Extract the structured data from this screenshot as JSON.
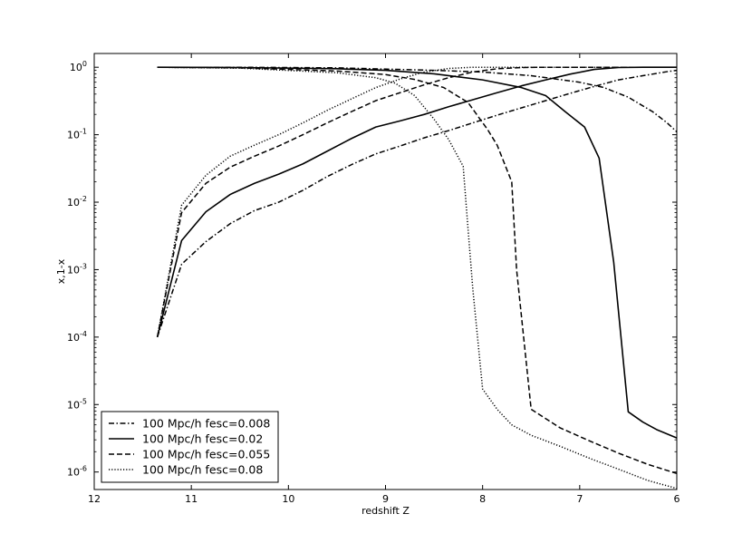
{
  "chart_data": {
    "type": "line",
    "title": "",
    "xlabel": "redshift Z",
    "ylabel": "x,1-x",
    "xlim": [
      12,
      6
    ],
    "x_reversed": true,
    "ylim": [
      5.5e-07,
      1.6
    ],
    "yscale": "log",
    "grid": false,
    "legend_position": "lower-left",
    "x_ticks": [
      {
        "value": 12,
        "label": "12"
      },
      {
        "value": 11,
        "label": "11"
      },
      {
        "value": 10,
        "label": "10"
      },
      {
        "value": 9,
        "label": "9"
      },
      {
        "value": 8,
        "label": "8"
      },
      {
        "value": 7,
        "label": "7"
      },
      {
        "value": 6,
        "label": "6"
      }
    ],
    "y_ticks": [
      {
        "value": 1,
        "base": "10",
        "exp": "0"
      },
      {
        "value": 0.1,
        "base": "10",
        "exp": "-1"
      },
      {
        "value": 0.01,
        "base": "10",
        "exp": "-2"
      },
      {
        "value": 0.001,
        "base": "10",
        "exp": "-3"
      },
      {
        "value": 0.0001,
        "base": "10",
        "exp": "-4"
      },
      {
        "value": 1e-05,
        "base": "10",
        "exp": "-5"
      },
      {
        "value": 1e-06,
        "base": "10",
        "exp": "-6"
      }
    ],
    "series": [
      {
        "name": "100 Mpc/h fesc=0.008",
        "style": "dashdot",
        "ionized": {
          "x": [
            11.35,
            11.1,
            10.85,
            10.6,
            10.35,
            10.1,
            9.85,
            9.6,
            9.35,
            9.1,
            8.85,
            8.6,
            8.35,
            8.1,
            7.85,
            7.6,
            7.35,
            7.1,
            6.85,
            6.6,
            6.35,
            6.1,
            6.0
          ],
          "y": [
            0.0001,
            0.0012,
            0.0026,
            0.0048,
            0.0075,
            0.01,
            0.015,
            0.024,
            0.036,
            0.052,
            0.068,
            0.09,
            0.115,
            0.15,
            0.195,
            0.25,
            0.32,
            0.41,
            0.52,
            0.65,
            0.75,
            0.86,
            0.9
          ]
        },
        "neutral": {
          "x": [
            11.35,
            10.5,
            9.5,
            8.5,
            8.0,
            7.5,
            7.0,
            6.75,
            6.5,
            6.25,
            6.1,
            6.0
          ],
          "y": [
            1.0,
            1.0,
            0.98,
            0.9,
            0.85,
            0.75,
            0.6,
            0.5,
            0.36,
            0.22,
            0.15,
            0.11
          ]
        }
      },
      {
        "name": "100 Mpc/h fesc=0.02",
        "style": "solid",
        "ionized": {
          "x": [
            11.35,
            11.1,
            10.85,
            10.6,
            10.35,
            10.1,
            9.85,
            9.6,
            9.35,
            9.1,
            8.85,
            8.6,
            8.35,
            8.1,
            7.85,
            7.6,
            7.35,
            7.1,
            6.85,
            6.6,
            6.35,
            6.1,
            6.0
          ],
          "y": [
            0.0001,
            0.0027,
            0.0072,
            0.013,
            0.019,
            0.026,
            0.037,
            0.057,
            0.088,
            0.13,
            0.16,
            0.2,
            0.26,
            0.33,
            0.42,
            0.53,
            0.65,
            0.79,
            0.93,
            0.99,
            1.0,
            1.0,
            1.0
          ]
        },
        "neutral": {
          "x": [
            11.35,
            10.5,
            9.5,
            9.0,
            8.5,
            8.0,
            7.6,
            7.35,
            7.15,
            6.95,
            6.8,
            6.65,
            6.5,
            6.35,
            6.2,
            6.0
          ],
          "y": [
            1.0,
            0.99,
            0.95,
            0.9,
            0.8,
            0.65,
            0.5,
            0.38,
            0.22,
            0.13,
            0.045,
            0.0013,
            7.8e-06,
            5.5e-06,
            4.2e-06,
            3.2e-06
          ]
        }
      },
      {
        "name": "100 Mpc/h fesc=0.055",
        "style": "dashed",
        "ionized": {
          "x": [
            11.35,
            11.1,
            10.85,
            10.6,
            10.35,
            10.1,
            9.85,
            9.6,
            9.35,
            9.1,
            8.85,
            8.6,
            8.35,
            8.1,
            7.85,
            7.6,
            7.35,
            7.1,
            6.85,
            6.6,
            6.35,
            6.1,
            6.0
          ],
          "y": [
            0.0001,
            0.007,
            0.019,
            0.033,
            0.048,
            0.068,
            0.1,
            0.15,
            0.22,
            0.32,
            0.42,
            0.55,
            0.7,
            0.85,
            0.95,
            0.99,
            1.0,
            1.0,
            1.0,
            1.0,
            1.0,
            1.0,
            1.0
          ]
        },
        "neutral": {
          "x": [
            11.35,
            10.5,
            9.5,
            9.0,
            8.7,
            8.4,
            8.15,
            7.95,
            7.85,
            7.7,
            7.65,
            7.5,
            7.2,
            6.9,
            6.6,
            6.3,
            6.0
          ],
          "y": [
            1.0,
            0.98,
            0.88,
            0.78,
            0.66,
            0.5,
            0.3,
            0.12,
            0.07,
            0.02,
            0.001,
            8.5e-06,
            4.5e-06,
            2.9e-06,
            1.9e-06,
            1.3e-06,
            9.5e-07
          ]
        }
      },
      {
        "name": "100 Mpc/h fesc=0.08",
        "style": "dotted",
        "ionized": {
          "x": [
            11.35,
            11.1,
            10.85,
            10.6,
            10.35,
            10.1,
            9.85,
            9.6,
            9.35,
            9.1,
            8.85,
            8.6,
            8.35,
            8.1,
            7.85,
            7.6,
            7.35,
            7.1,
            6.85,
            6.6,
            6.35,
            6.1,
            6.0
          ],
          "y": [
            0.0001,
            0.009,
            0.025,
            0.048,
            0.07,
            0.1,
            0.15,
            0.23,
            0.34,
            0.5,
            0.67,
            0.85,
            0.96,
            1.0,
            1.0,
            1.0,
            1.0,
            1.0,
            1.0,
            1.0,
            1.0,
            1.0,
            1.0
          ]
        },
        "neutral": {
          "x": [
            11.35,
            10.5,
            9.5,
            9.1,
            8.9,
            8.7,
            8.5,
            8.35,
            8.2,
            8.15,
            8.1,
            8.0,
            7.85,
            7.7,
            7.5,
            7.2,
            6.9,
            6.6,
            6.3,
            6.0
          ],
          "y": [
            1.0,
            0.97,
            0.83,
            0.7,
            0.58,
            0.38,
            0.17,
            0.085,
            0.034,
            0.004,
            0.0005,
            1.7e-05,
            8.5e-06,
            5e-06,
            3.5e-06,
            2.4e-06,
            1.6e-06,
            1.1e-06,
            7.5e-07,
            5.7e-07
          ]
        }
      }
    ]
  }
}
